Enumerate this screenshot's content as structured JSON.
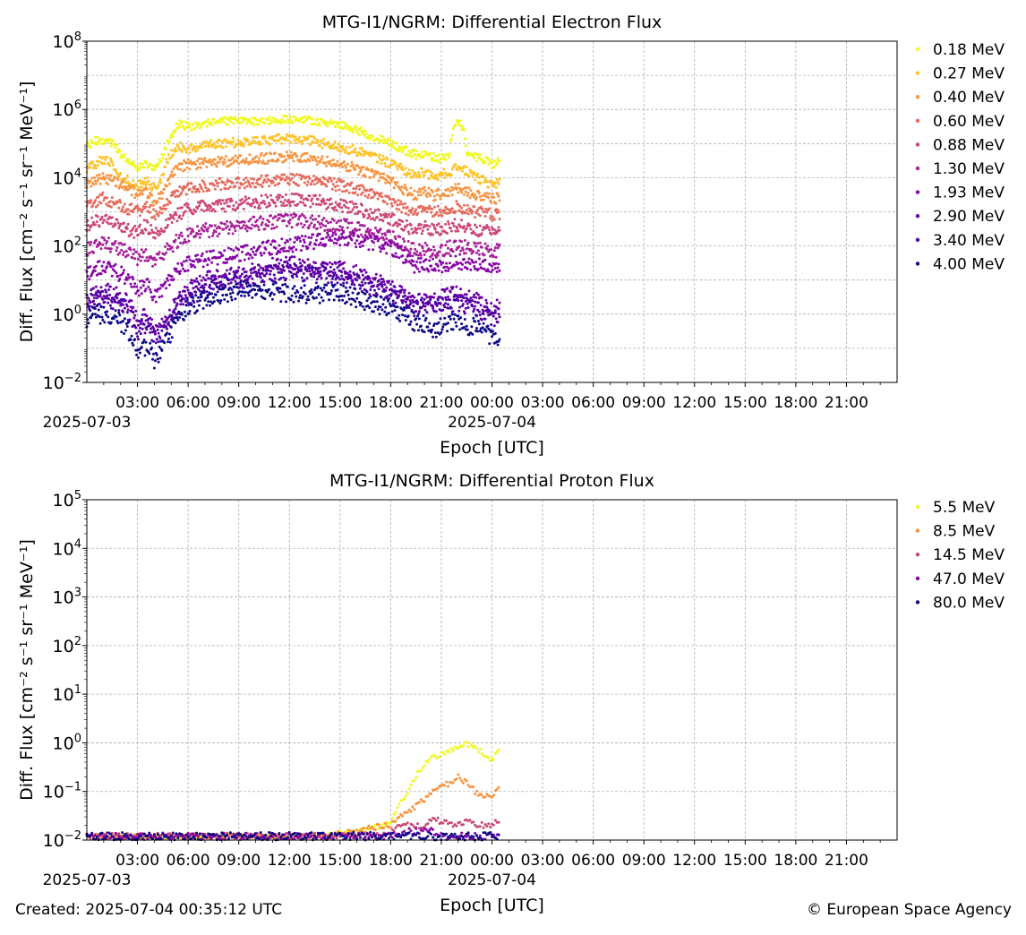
{
  "footer": {
    "created": "Created: 2025-07-04 00:35:12 UTC",
    "copyright": "© European Space Agency"
  },
  "chart_data": [
    {
      "type": "scatter",
      "title": "MTG-I1/NGRM: Differential Electron Flux",
      "xlabel": "Epoch [UTC]",
      "ylabel": "Diff. Flux [cm⁻² s⁻¹ sr⁻¹ MeV⁻¹]",
      "yscale": "log",
      "xlim": [
        "2025-07-03 00:00",
        "2025-07-05 00:00"
      ],
      "ylim": [
        0.01,
        100000000
      ],
      "ytick_exponents": [
        -2,
        0,
        2,
        4,
        6,
        8
      ],
      "xtick_labels": [
        "03:00",
        "06:00",
        "09:00",
        "12:00",
        "15:00",
        "18:00",
        "21:00",
        "00:00",
        "03:00",
        "06:00",
        "09:00",
        "12:00",
        "15:00",
        "18:00",
        "21:00"
      ],
      "date_labels": [
        "2025-07-03",
        "2025-07-04"
      ],
      "grid": true,
      "legend_position": "outside-right",
      "x_hours_since_2025-07-03": [
        0,
        0.5,
        1,
        1.5,
        2,
        2.5,
        3,
        3.5,
        4,
        4.5,
        5,
        5.5,
        6,
        6.5,
        7,
        8,
        9,
        10,
        11,
        12,
        13,
        14,
        15,
        16,
        17,
        18,
        18.5,
        19,
        19.5,
        20,
        20.5,
        21,
        21.5,
        22,
        22.5,
        23,
        23.5,
        24,
        24.5
      ],
      "series": [
        {
          "name": "0.18 MeV",
          "color": "#f0f921",
          "values": [
            80000,
            120000,
            130000,
            100000,
            50000,
            30000,
            20000,
            25000,
            20000,
            40000,
            150000,
            400000,
            300000,
            350000,
            400000,
            450000,
            450000,
            450000,
            500000,
            500000,
            500000,
            400000,
            350000,
            250000,
            150000,
            100000,
            70000,
            60000,
            45000,
            50000,
            40000,
            35000,
            50000,
            500000,
            60000,
            40000,
            35000,
            25000,
            30000
          ]
        },
        {
          "name": "0.27 MeV",
          "color": "#fdc328",
          "values": [
            20000,
            25000,
            35000,
            25000,
            10000,
            8000,
            6000,
            8000,
            5000,
            10000,
            50000,
            80000,
            70000,
            80000,
            90000,
            100000,
            110000,
            120000,
            130000,
            140000,
            130000,
            100000,
            80000,
            60000,
            40000,
            25000,
            20000,
            15000,
            12000,
            15000,
            10000,
            12000,
            15000,
            20000,
            15000,
            10000,
            8000,
            6000,
            7000
          ]
        },
        {
          "name": "0.40 MeV",
          "color": "#f89441",
          "values": [
            6000,
            8000,
            10000,
            8000,
            6000,
            5000,
            3000,
            4000,
            2000,
            3000,
            10000,
            20000,
            25000,
            25000,
            28000,
            30000,
            32000,
            35000,
            38000,
            40000,
            38000,
            30000,
            25000,
            18000,
            12000,
            8000,
            5000,
            4000,
            3000,
            4000,
            3000,
            3500,
            4000,
            5000,
            4000,
            3000,
            3000,
            2500,
            2500
          ]
        },
        {
          "name": "0.60 MeV",
          "color": "#e56b5d",
          "values": [
            1500,
            2000,
            2500,
            2000,
            1500,
            1200,
            1000,
            1500,
            800,
            1000,
            2500,
            4000,
            5000,
            5500,
            6000,
            6500,
            7000,
            7500,
            8000,
            9000,
            8500,
            7000,
            6000,
            4500,
            3000,
            2000,
            1500,
            1200,
            1000,
            1200,
            1000,
            1100,
            1300,
            1400,
            1200,
            1000,
            1000,
            800,
            900
          ]
        },
        {
          "name": "0.88 MeV",
          "color": "#cb4778",
          "values": [
            400,
            500,
            600,
            500,
            400,
            300,
            250,
            400,
            200,
            300,
            600,
            900,
            1200,
            1300,
            1400,
            1500,
            1700,
            1900,
            2100,
            2300,
            2200,
            1900,
            1600,
            1200,
            800,
            600,
            450,
            350,
            300,
            350,
            300,
            320,
            380,
            400,
            350,
            300,
            300,
            250,
            250
          ]
        },
        {
          "name": "1.30 MeV",
          "color": "#a62098",
          "values": [
            80,
            100,
            120,
            100,
            80,
            60,
            40,
            60,
            30,
            50,
            100,
            150,
            200,
            250,
            280,
            320,
            380,
            450,
            500,
            550,
            520,
            450,
            400,
            320,
            250,
            180,
            120,
            90,
            70,
            80,
            70,
            70,
            90,
            100,
            90,
            80,
            80,
            70,
            70
          ]
        },
        {
          "name": "1.93 MeV",
          "color": "#8606a6",
          "values": [
            15,
            20,
            25,
            20,
            15,
            10,
            5,
            8,
            3,
            5,
            12,
            20,
            30,
            35,
            40,
            50,
            60,
            70,
            90,
            110,
            130,
            150,
            170,
            140,
            120,
            90,
            60,
            40,
            25,
            30,
            25,
            28,
            32,
            35,
            30,
            25,
            25,
            20,
            20
          ]
        },
        {
          "name": "2.90 MeV",
          "color": "#6a00a8",
          "values": [
            3,
            4,
            5,
            4,
            3,
            2,
            0.5,
            1,
            0.3,
            0.5,
            1,
            3,
            5,
            8,
            10,
            12,
            15,
            18,
            25,
            30,
            25,
            22,
            20,
            15,
            10,
            7,
            5,
            3,
            2,
            3,
            2.5,
            3,
            3.5,
            4,
            3,
            2.5,
            2,
            1.5,
            1.5
          ]
        },
        {
          "name": "3.40 MeV",
          "color": "#4c02a1",
          "values": [
            2,
            2.5,
            3,
            2.5,
            2,
            1,
            0.3,
            0.5,
            0.2,
            0.3,
            0.8,
            2,
            3,
            4,
            6,
            8,
            10,
            12,
            15,
            18,
            15,
            14,
            12,
            9,
            6,
            4,
            3,
            2,
            1.5,
            2,
            1.5,
            1.8,
            2,
            2.2,
            1.8,
            1.5,
            1.2,
            0.8,
            0.8
          ]
        },
        {
          "name": "4.00 MeV",
          "color": "#0d0887",
          "values": [
            0.8,
            1,
            1,
            0.8,
            0.6,
            0.3,
            0.1,
            0.1,
            0.05,
            0.1,
            0.3,
            0.8,
            1.5,
            2,
            3,
            4,
            5,
            5,
            5,
            4,
            4,
            4,
            4,
            3,
            2,
            1.5,
            1,
            0.8,
            0.5,
            0.5,
            0.4,
            0.4,
            0.5,
            0.6,
            0.5,
            0.4,
            0.3,
            0.2,
            0.2
          ]
        }
      ]
    },
    {
      "type": "scatter",
      "title": "MTG-I1/NGRM: Differential Proton Flux",
      "xlabel": "Epoch [UTC]",
      "ylabel": "Diff. Flux [cm⁻² s⁻¹ sr⁻¹ MeV⁻¹]",
      "yscale": "log",
      "xlim": [
        "2025-07-03 00:00",
        "2025-07-05 00:00"
      ],
      "ylim": [
        0.01,
        100000
      ],
      "ytick_exponents": [
        -2,
        -1,
        0,
        1,
        2,
        3,
        4,
        5
      ],
      "xtick_labels": [
        "03:00",
        "06:00",
        "09:00",
        "12:00",
        "15:00",
        "18:00",
        "21:00",
        "00:00",
        "03:00",
        "06:00",
        "09:00",
        "12:00",
        "15:00",
        "18:00",
        "21:00"
      ],
      "date_labels": [
        "2025-07-03",
        "2025-07-04"
      ],
      "grid": true,
      "legend_position": "outside-right",
      "x_hours_since_2025-07-03": [
        0,
        2,
        4,
        6,
        8,
        10,
        12,
        14,
        16,
        17,
        17.5,
        18,
        18.5,
        19,
        19.5,
        20,
        20.5,
        21,
        21.5,
        22,
        22.5,
        23,
        23.5,
        24,
        24.5
      ],
      "series": [
        {
          "name": "5.5 MeV",
          "color": "#f0f921",
          "values": [
            0.012,
            0.012,
            0.012,
            0.012,
            0.012,
            0.012,
            0.012,
            0.012,
            0.015,
            0.018,
            0.02,
            0.025,
            0.05,
            0.1,
            0.2,
            0.35,
            0.5,
            0.6,
            0.7,
            0.85,
            0.95,
            0.8,
            0.6,
            0.45,
            0.7
          ]
        },
        {
          "name": "8.5 MeV",
          "color": "#f89441",
          "values": [
            0.012,
            0.012,
            0.012,
            0.012,
            0.012,
            0.012,
            0.012,
            0.012,
            0.015,
            0.018,
            0.02,
            0.02,
            0.03,
            0.04,
            0.05,
            0.07,
            0.1,
            0.12,
            0.15,
            0.2,
            0.15,
            0.1,
            0.08,
            0.08,
            0.12
          ]
        },
        {
          "name": "14.5 MeV",
          "color": "#cb4778",
          "values": [
            0.012,
            0.012,
            0.012,
            0.012,
            0.012,
            0.012,
            0.012,
            0.012,
            0.012,
            0.012,
            0.012,
            0.015,
            0.02,
            0.02,
            0.02,
            0.02,
            0.025,
            0.025,
            0.02,
            0.02,
            0.025,
            0.02,
            0.02,
            0.02,
            0.025
          ]
        },
        {
          "name": "47.0 MeV",
          "color": "#8606a6",
          "values": [
            0.012,
            0.012,
            0.012,
            0.012,
            0.012,
            0.012,
            0.012,
            0.012,
            0.012,
            0.012,
            0.012,
            0.012,
            0.012,
            0.015,
            0.015,
            0.015,
            0.015,
            0.012,
            0.012,
            0.012,
            0.012,
            0.012,
            0.012,
            0.012,
            0.012
          ]
        },
        {
          "name": "80.0 MeV",
          "color": "#0d0887",
          "values": [
            0.012,
            0.012,
            0.012,
            0.012,
            0.012,
            0.012,
            0.012,
            0.012,
            0.012,
            0.012,
            0.012,
            0.012,
            0.012,
            0.012,
            0.012,
            0.012,
            0.012,
            0.012,
            0.012,
            0.012,
            0.012,
            0.012,
            0.012,
            0.012,
            0.012
          ]
        }
      ]
    }
  ]
}
